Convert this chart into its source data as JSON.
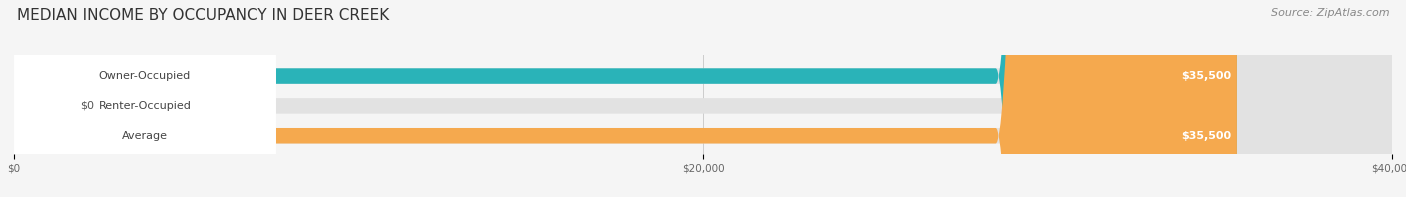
{
  "title": "MEDIAN INCOME BY OCCUPANCY IN DEER CREEK",
  "source": "Source: ZipAtlas.com",
  "categories": [
    "Owner-Occupied",
    "Renter-Occupied",
    "Average"
  ],
  "values": [
    35500,
    0,
    35500
  ],
  "bar_colors": [
    "#2ab3b8",
    "#c9a8d4",
    "#f5a94e"
  ],
  "x_max": 40000,
  "x_ticks": [
    0,
    20000,
    40000
  ],
  "x_tick_labels": [
    "$0",
    "$20,000",
    "$40,000"
  ],
  "value_labels": [
    "$35,500",
    "$0",
    "$35,500"
  ],
  "title_fontsize": 11,
  "source_fontsize": 8,
  "bar_label_fontsize": 8,
  "value_fontsize": 8,
  "figsize": [
    14.06,
    1.97
  ],
  "dpi": 100
}
